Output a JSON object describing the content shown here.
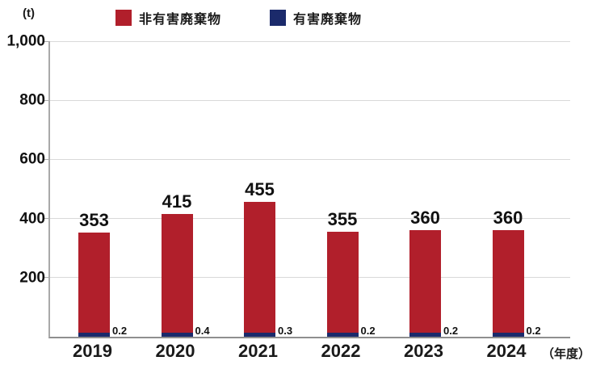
{
  "unit_label": "(t)",
  "x_axis_suffix": "（年度）",
  "chart_data": {
    "type": "bar",
    "stacked": true,
    "title": "",
    "xlabel": "年度",
    "ylabel": "t",
    "ylim": [
      0,
      1000
    ],
    "grid": true,
    "legend_position": "top",
    "categories": [
      "2019",
      "2020",
      "2021",
      "2022",
      "2023",
      "2024"
    ],
    "series": [
      {
        "name": "非有害廃棄物",
        "color": "#b11f2b",
        "values": [
          353,
          415,
          455,
          355,
          360,
          360
        ]
      },
      {
        "name": "有害廃棄物",
        "color": "#1b2a6b",
        "values": [
          0.2,
          0.4,
          0.3,
          0.2,
          0.2,
          0.2
        ]
      }
    ],
    "y_ticks": [
      200,
      400,
      600,
      800,
      1000
    ],
    "y_tick_labels": [
      "200",
      "400",
      "600",
      "800",
      "1,000"
    ]
  }
}
